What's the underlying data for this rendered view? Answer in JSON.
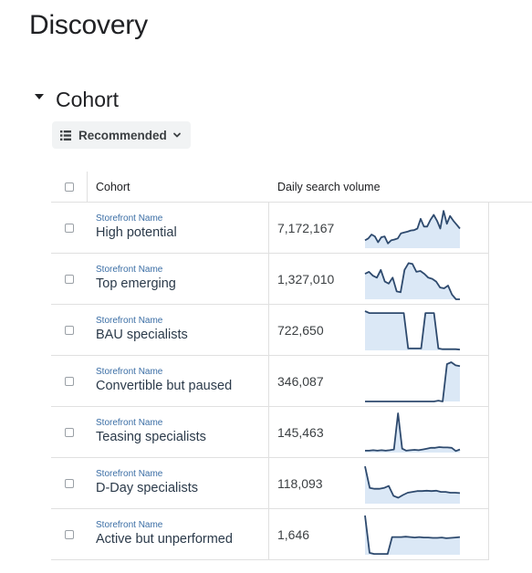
{
  "page": {
    "title": "Discovery"
  },
  "section": {
    "title": "Cohort"
  },
  "sort": {
    "label": "Recommended"
  },
  "table": {
    "columns": [
      "Cohort",
      "Daily search volume"
    ],
    "rows": [
      {
        "sub": "Storefront Name",
        "name": "High potential",
        "volume": "7,172,167",
        "trend": [
          0.2,
          0.25,
          0.35,
          0.3,
          0.15,
          0.28,
          0.3,
          0.12,
          0.2,
          0.22,
          0.25,
          0.38,
          0.4,
          0.42,
          0.45,
          0.46,
          0.5,
          0.75,
          0.55,
          0.55,
          0.72,
          0.85,
          0.7,
          0.5,
          0.95,
          0.62,
          0.82,
          0.7,
          0.6,
          0.5
        ]
      },
      {
        "sub": "Storefront Name",
        "name": "Top emerging",
        "volume": "1,327,010",
        "trend": [
          0.65,
          0.7,
          0.6,
          0.55,
          0.75,
          0.45,
          0.4,
          0.55,
          0.2,
          0.18,
          0.75,
          0.92,
          0.9,
          0.7,
          0.72,
          0.65,
          0.55,
          0.52,
          0.45,
          0.3,
          0.28,
          0.35,
          0.12,
          0.0,
          0.0
        ]
      },
      {
        "sub": "Storefront Name",
        "name": "BAU specialists",
        "volume": "722,650",
        "trend": [
          1.0,
          0.95,
          0.95,
          0.95,
          0.95,
          0.95,
          0.95,
          0.95,
          0.95,
          0.95,
          0.05,
          0.05,
          0.05,
          0.05,
          0.95,
          0.95,
          0.95,
          0.05,
          0.03,
          0.03,
          0.03,
          0.03,
          0.02
        ]
      },
      {
        "sub": "Storefront Name",
        "name": "Convertible but paused",
        "volume": "346,087",
        "trend": [
          0.0,
          0.0,
          0.0,
          0.0,
          0.0,
          0.0,
          0.0,
          0.0,
          0.0,
          0.0,
          0.0,
          0.0,
          0.0,
          0.0,
          0.0,
          0.0,
          0.0,
          0.02,
          0.0,
          0.95,
          1.0,
          0.92,
          0.9
        ]
      },
      {
        "sub": "Storefront Name",
        "name": "Teasing specialists",
        "volume": "145,463",
        "trend": [
          0.05,
          0.05,
          0.06,
          0.05,
          0.06,
          0.05,
          0.06,
          0.08,
          1.0,
          0.1,
          0.05,
          0.06,
          0.07,
          0.06,
          0.08,
          0.1,
          0.12,
          0.12,
          0.14,
          0.13,
          0.13,
          0.12,
          0.04,
          0.08
        ]
      },
      {
        "sub": "Storefront Name",
        "name": "D-Day specialists",
        "volume": "118,093",
        "trend": [
          0.95,
          0.4,
          0.38,
          0.38,
          0.4,
          0.45,
          0.2,
          0.15,
          0.22,
          0.28,
          0.3,
          0.32,
          0.32,
          0.33,
          0.32,
          0.33,
          0.3,
          0.3,
          0.28,
          0.28,
          0.27
        ]
      },
      {
        "sub": "Storefront Name",
        "name": "Active but unperformed",
        "volume": "1,646",
        "trend": [
          1.0,
          0.05,
          0.02,
          0.02,
          0.02,
          0.02,
          0.45,
          0.45,
          0.45,
          0.46,
          0.45,
          0.44,
          0.45,
          0.44,
          0.44,
          0.43,
          0.43,
          0.44,
          0.42,
          0.43,
          0.44,
          0.45
        ]
      }
    ]
  },
  "colors": {
    "sparkline_stroke": "#2e4a6e",
    "sparkline_fill": "#dbe8f6"
  }
}
